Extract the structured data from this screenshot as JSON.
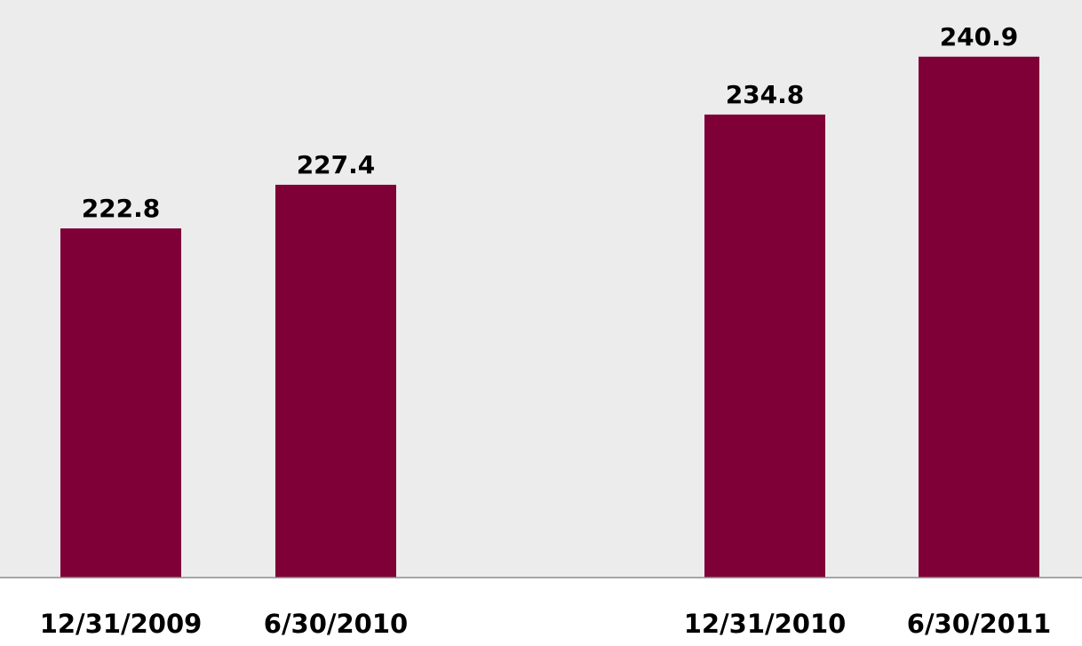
{
  "colors": {
    "bar": "#7f0037",
    "plot_background": "#ececec",
    "page_background": "#ffffff",
    "baseline": "#8c8c8c"
  },
  "chart_data": {
    "type": "bar",
    "title": "",
    "xlabel": "",
    "ylabel": "",
    "categories": [
      "12/31/2009",
      "6/30/2010",
      "12/31/2010",
      "6/30/2011"
    ],
    "values": [
      222.8,
      227.4,
      234.8,
      240.9
    ],
    "data_labels": [
      "222.8",
      "227.4",
      "234.8",
      "240.9"
    ],
    "ylim": [
      186,
      245
    ],
    "grid": false,
    "legend": "none",
    "group_gap_after_index": 1
  }
}
